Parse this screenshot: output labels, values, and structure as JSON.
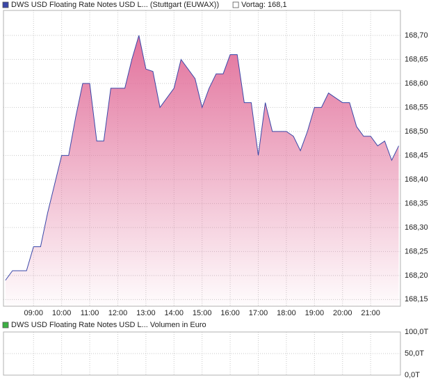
{
  "chart_data": [
    {
      "type": "area",
      "series": [
        {
          "name": "DWS USD Floating Rate Notes USD L... (Stuttgart (EUWAX))",
          "color": "#3a47a8",
          "x": [
            8.0,
            8.25,
            8.75,
            9.0,
            9.25,
            9.5,
            9.75,
            10.0,
            10.25,
            10.5,
            10.75,
            11.0,
            11.25,
            11.5,
            11.75,
            12.0,
            12.25,
            12.5,
            12.75,
            13.0,
            13.25,
            13.5,
            13.75,
            14.0,
            14.25,
            14.75,
            15.0,
            15.25,
            15.5,
            15.75,
            16.0,
            16.25,
            16.5,
            16.75,
            17.0,
            17.25,
            17.5,
            17.75,
            18.0,
            18.25,
            18.5,
            18.75,
            19.0,
            19.25,
            19.5,
            19.75,
            20.0,
            20.25,
            20.5,
            20.75,
            21.0,
            21.25,
            21.5,
            21.75,
            22.0
          ],
          "values": [
            168.19,
            168.21,
            168.21,
            168.26,
            168.26,
            168.33,
            168.39,
            168.45,
            168.45,
            168.53,
            168.6,
            168.6,
            168.48,
            168.48,
            168.59,
            168.59,
            168.59,
            168.65,
            168.7,
            168.63,
            168.625,
            168.55,
            168.57,
            168.59,
            168.65,
            168.61,
            168.55,
            168.59,
            168.62,
            168.62,
            168.66,
            168.66,
            168.56,
            168.56,
            168.45,
            168.56,
            168.5,
            168.5,
            168.5,
            168.49,
            168.46,
            168.5,
            168.55,
            168.55,
            168.58,
            168.57,
            168.56,
            168.56,
            168.51,
            168.49,
            168.49,
            168.47,
            168.48,
            168.44,
            168.47
          ]
        }
      ],
      "reference": {
        "label": "Vortag: 168,1",
        "value": 168.1
      },
      "fill_color": "#e2729c",
      "xlim": [
        7.93,
        22.06
      ],
      "xticks": [
        {
          "value": 9,
          "label": "09:00"
        },
        {
          "value": 10,
          "label": "10:00"
        },
        {
          "value": 11,
          "label": "11:00"
        },
        {
          "value": 12,
          "label": "12:00"
        },
        {
          "value": 13,
          "label": "13:00"
        },
        {
          "value": 14,
          "label": "14:00"
        },
        {
          "value": 15,
          "label": "15:00"
        },
        {
          "value": 16,
          "label": "16:00"
        },
        {
          "value": 17,
          "label": "17:00"
        },
        {
          "value": 18,
          "label": "18:00"
        },
        {
          "value": 19,
          "label": "19:00"
        },
        {
          "value": 20,
          "label": "20:00"
        },
        {
          "value": 21,
          "label": "21:00"
        }
      ],
      "ylim": [
        168.136,
        168.752
      ],
      "yticks": [
        {
          "value": 168.15,
          "label": "168,15"
        },
        {
          "value": 168.2,
          "label": "168,20"
        },
        {
          "value": 168.25,
          "label": "168,25"
        },
        {
          "value": 168.3,
          "label": "168,30"
        },
        {
          "value": 168.35,
          "label": "168,35"
        },
        {
          "value": 168.4,
          "label": "168,40"
        },
        {
          "value": 168.45,
          "label": "168,45"
        },
        {
          "value": 168.5,
          "label": "168,50"
        },
        {
          "value": 168.55,
          "label": "168,55"
        },
        {
          "value": 168.6,
          "label": "168,60"
        },
        {
          "value": 168.65,
          "label": "168,65"
        },
        {
          "value": 168.7,
          "label": "168,70"
        }
      ],
      "grid": true
    },
    {
      "type": "bar",
      "series": [
        {
          "name": "DWS USD Floating Rate Notes USD L... Volumen in Euro",
          "color": "#3cb043",
          "x": [],
          "values": []
        }
      ],
      "xlim": [
        7.93,
        22.06
      ],
      "xticks": [
        9,
        10,
        11,
        12,
        13,
        14,
        15,
        16,
        17,
        18,
        19,
        20,
        21
      ],
      "ylim": [
        0,
        100000
      ],
      "yticks": [
        {
          "value": 0,
          "label": "0,0T"
        },
        {
          "value": 50000,
          "label": "50,0T"
        },
        {
          "value": 100000,
          "label": "100,0T"
        }
      ],
      "grid": true
    }
  ]
}
